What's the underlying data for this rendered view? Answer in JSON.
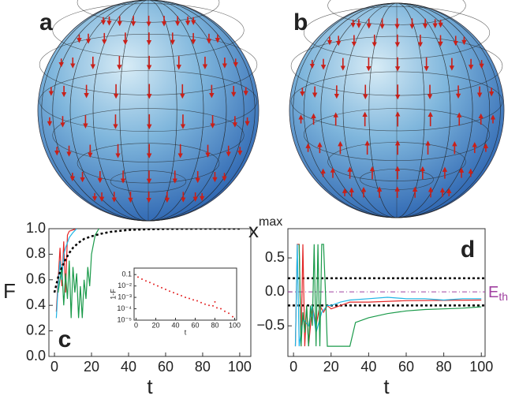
{
  "panels": {
    "a": "a",
    "b": "b"
  },
  "chart_data": [
    {
      "type": "line",
      "panel": "c",
      "xlabel": "t",
      "ylabel": "F",
      "xlim": [
        -3,
        106
      ],
      "xticks": [
        0,
        20,
        40,
        60,
        80,
        100
      ],
      "ylim": [
        0,
        1
      ],
      "yticks": [
        {
          "value": 0,
          "label": "0.0"
        },
        {
          "value": 0.2,
          "label": "0.2"
        },
        {
          "value": 0.4,
          "label": "0.4"
        },
        {
          "value": 0.6,
          "label": "0.6"
        },
        {
          "value": 0.8,
          "label": "0.8"
        },
        {
          "value": 1,
          "label": "1.0"
        }
      ],
      "series": [
        {
          "color": "#e32626",
          "x": [
            1,
            2,
            3,
            4,
            5,
            6,
            7,
            8,
            10,
            12
          ],
          "values": [
            0.35,
            0.6,
            0.85,
            0.55,
            0.9,
            0.5,
            0.95,
            0.98,
            0.99,
            1.0
          ]
        },
        {
          "color": "#1fb6e6",
          "x": [
            1,
            2,
            3,
            4,
            5,
            6,
            8,
            10,
            12
          ],
          "values": [
            0.3,
            0.55,
            0.75,
            0.6,
            0.8,
            0.85,
            0.93,
            0.97,
            1.0
          ]
        },
        {
          "color": "#1a9a4a",
          "x": [
            2,
            4,
            5,
            6,
            7,
            8,
            9,
            10,
            11,
            12,
            13,
            14,
            15,
            16,
            17,
            18,
            19,
            20,
            22,
            24
          ],
          "values": [
            0.5,
            0.7,
            0.4,
            0.65,
            0.45,
            0.75,
            0.3,
            0.7,
            0.5,
            0.65,
            0.3,
            0.55,
            0.3,
            0.6,
            0.45,
            0.7,
            0.55,
            0.8,
            0.95,
            1.0
          ]
        },
        {
          "color": "#000000",
          "dash": "dotted",
          "x": [
            0,
            2,
            4,
            6,
            8,
            10,
            13,
            16,
            20,
            25,
            30,
            40,
            50,
            60,
            80,
            100
          ],
          "values": [
            0.5,
            0.62,
            0.7,
            0.76,
            0.81,
            0.85,
            0.89,
            0.92,
            0.94,
            0.96,
            0.975,
            0.99,
            0.995,
            0.998,
            1.0,
            1.0
          ]
        }
      ]
    },
    {
      "type": "scatter",
      "xlabel": "t",
      "ylabel": "1-F",
      "log_y": true,
      "xlim": [
        -2,
        102
      ],
      "xticks": [
        0,
        20,
        40,
        60,
        80,
        100
      ],
      "ylim": [
        1e-05,
        0.37
      ],
      "yticks": [
        {
          "value": 0.1,
          "label": "0.1"
        },
        {
          "value": 0.01,
          "label": "10⁻²"
        },
        {
          "value": 0.001,
          "label": "10⁻³"
        },
        {
          "value": 0.0001,
          "label": "10⁻⁴"
        },
        {
          "value": 1e-05,
          "label": "10⁻⁵"
        }
      ],
      "series": [
        {
          "color": "#e32626",
          "x": [
            2,
            6,
            10,
            14,
            18,
            22,
            26,
            30,
            34,
            38,
            42,
            46,
            50,
            54,
            58,
            62,
            66,
            70,
            74,
            78,
            80,
            82,
            86,
            90,
            94,
            98
          ],
          "values": [
            0.06,
            0.04,
            0.028,
            0.02,
            0.014,
            0.01,
            0.007,
            0.005,
            0.0035,
            0.0026,
            0.0019,
            0.0014,
            0.001,
            0.0008,
            0.0006,
            0.0005,
            0.00035,
            0.00025,
            0.0002,
            0.00018,
            0.0004,
            0.00012,
            0.0001,
            6e-05,
            4e-05,
            2e-05
          ]
        }
      ]
    },
    {
      "type": "line",
      "panel": "d",
      "xlabel": "t",
      "ylabel": "x",
      "ylabel_superscript": "max",
      "xlim": [
        -3,
        102
      ],
      "xticks": [
        0,
        20,
        40,
        60,
        80,
        100
      ],
      "ylim": [
        -0.95,
        0.93
      ],
      "yticks": [
        {
          "value": -0.5,
          "label": "−0.5"
        },
        {
          "value": 0,
          "label": "0.0"
        },
        {
          "value": 0.5,
          "label": "0.5"
        }
      ],
      "hlines": [
        {
          "value": 0.2,
          "color": "#000000",
          "dash": "dotted"
        },
        {
          "value": -0.2,
          "color": "#000000",
          "dash": "dotted"
        },
        {
          "value": 0,
          "color": "#a040a0",
          "dash": "dashdot",
          "label": "E",
          "label_subscript": "th"
        }
      ],
      "series": [
        {
          "color": "#e32626",
          "x": [
            1,
            2,
            3,
            4,
            5,
            6,
            7,
            8,
            10,
            12,
            14,
            16,
            18,
            20,
            25,
            30,
            40,
            60,
            100
          ],
          "values": [
            -0.8,
            0.7,
            0.7,
            -0.8,
            0.7,
            -0.8,
            -0.2,
            -0.8,
            -0.2,
            -0.5,
            -0.2,
            -0.3,
            -0.2,
            -0.25,
            -0.2,
            -0.15,
            -0.15,
            -0.13,
            -0.12
          ]
        },
        {
          "color": "#1fb6e6",
          "x": [
            1,
            2,
            3,
            5,
            8,
            10,
            12,
            15,
            18,
            20,
            25,
            30,
            40,
            50,
            60,
            70,
            80,
            90,
            100
          ],
          "values": [
            -0.8,
            0.7,
            -0.8,
            -0.4,
            -0.5,
            -0.2,
            -0.6,
            -0.3,
            -0.2,
            -0.2,
            -0.15,
            -0.12,
            -0.1,
            -0.08,
            -0.1,
            -0.1,
            -0.12,
            -0.1,
            -0.1
          ]
        },
        {
          "color": "#1a9a4a",
          "x": [
            3,
            4,
            5,
            6,
            7,
            8,
            9,
            10,
            11,
            12,
            13,
            14,
            15,
            16,
            17,
            18,
            19,
            20,
            22,
            25,
            30,
            33,
            40,
            50,
            60,
            70,
            80,
            90,
            100
          ],
          "values": [
            0.7,
            -0.8,
            -0.3,
            -0.6,
            -0.2,
            -0.8,
            -0.2,
            -0.5,
            0.7,
            -0.8,
            0.7,
            -0.8,
            0.7,
            0.7,
            0.0,
            -0.8,
            -0.8,
            -0.8,
            -0.8,
            -0.8,
            -0.8,
            -0.45,
            -0.38,
            -0.32,
            -0.28,
            -0.26,
            -0.25,
            -0.24,
            -0.22
          ]
        }
      ]
    }
  ]
}
